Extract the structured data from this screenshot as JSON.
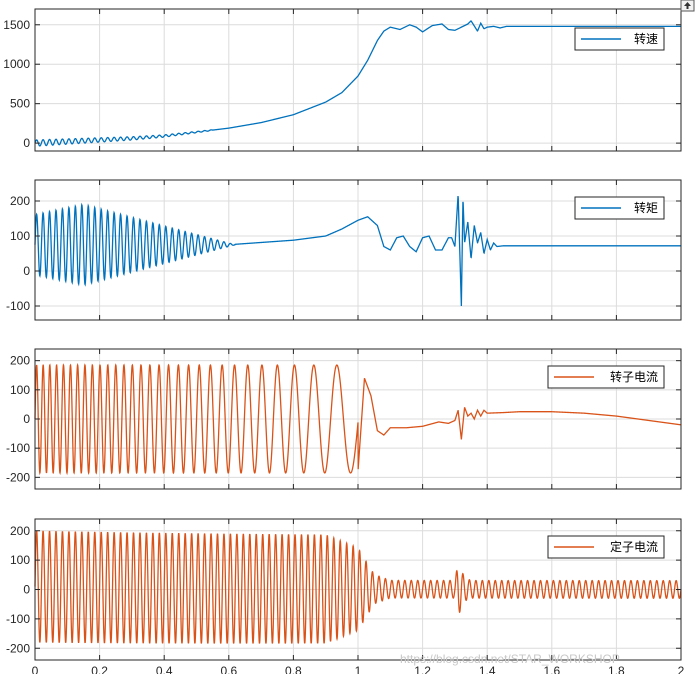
{
  "figure": {
    "watermark": "https://blog.csdn.net/STAR_WORKSHOP",
    "toolbar_icon": "export-arrow-icon",
    "colors": {
      "blue": "#0072BD",
      "orange": "#D95319",
      "grid": "#dcdcdc",
      "axis": "#262626"
    }
  },
  "chart_data": [
    {
      "type": "line",
      "title": "",
      "xlabel": "",
      "ylabel": "",
      "xlim": [
        0,
        2
      ],
      "ylim": [
        -100,
        1700
      ],
      "xticks": [
        0,
        0.2,
        0.4,
        0.6,
        0.8,
        1,
        1.2,
        1.4,
        1.6,
        1.8,
        2
      ],
      "yticks": [
        0,
        500,
        1000,
        1500
      ],
      "ytick_labels": [
        "0",
        "500",
        "1000",
        "1500"
      ],
      "show_xtick_labels": false,
      "grid": true,
      "legend_position": "top-right",
      "series": [
        {
          "name": "转速",
          "color": "#0072BD",
          "x": [
            0,
            0.1,
            0.2,
            0.3,
            0.4,
            0.5,
            0.6,
            0.7,
            0.8,
            0.9,
            0.95,
            1.0,
            1.03,
            1.06,
            1.08,
            1.1,
            1.13,
            1.16,
            1.18,
            1.2,
            1.23,
            1.26,
            1.28,
            1.3,
            1.32,
            1.34,
            1.35,
            1.37,
            1.38,
            1.39,
            1.4,
            1.42,
            1.44,
            1.46,
            1.5,
            2.0
          ],
          "y": [
            0,
            20,
            40,
            60,
            90,
            140,
            190,
            260,
            360,
            520,
            640,
            850,
            1050,
            1300,
            1420,
            1470,
            1440,
            1500,
            1470,
            1410,
            1490,
            1510,
            1440,
            1430,
            1470,
            1510,
            1550,
            1420,
            1520,
            1450,
            1470,
            1480,
            1460,
            1480,
            1480,
            1480
          ],
          "oscillation": {
            "until_x": 0.55,
            "amplitude_start": 40,
            "amplitude_end": 5,
            "frequency_hz": 50
          }
        }
      ]
    },
    {
      "type": "line",
      "title": "",
      "xlabel": "",
      "ylabel": "",
      "xlim": [
        0,
        2
      ],
      "ylim": [
        -140,
        260
      ],
      "xticks": [
        0,
        0.2,
        0.4,
        0.6,
        0.8,
        1,
        1.2,
        1.4,
        1.6,
        1.8,
        2
      ],
      "yticks": [
        -100,
        0,
        100,
        200
      ],
      "ytick_labels": [
        "-100",
        "0",
        "100",
        "200"
      ],
      "show_xtick_labels": false,
      "grid": true,
      "legend_position": "top-right",
      "series": [
        {
          "name": "转矩",
          "color": "#0072BD",
          "x": [
            0,
            0.6,
            0.8,
            0.9,
            0.95,
            1.0,
            1.03,
            1.06,
            1.08,
            1.1,
            1.12,
            1.14,
            1.16,
            1.18,
            1.2,
            1.22,
            1.24,
            1.26,
            1.28,
            1.29,
            1.3,
            1.31,
            1.315,
            1.32,
            1.325,
            1.33,
            1.34,
            1.35,
            1.36,
            1.37,
            1.38,
            1.39,
            1.4,
            1.41,
            1.42,
            1.43,
            1.45,
            1.5,
            2.0
          ],
          "y": [
            75,
            75,
            88,
            100,
            120,
            145,
            155,
            130,
            70,
            60,
            95,
            100,
            70,
            55,
            95,
            100,
            60,
            60,
            95,
            95,
            70,
            220,
            60,
            -100,
            210,
            80,
            140,
            35,
            130,
            80,
            110,
            50,
            90,
            60,
            80,
            70,
            72,
            72,
            72
          ],
          "oscillation": {
            "until_x": 0.62,
            "amplitude_peak": 115,
            "peak_x": 0.15,
            "frequency_hz": 50
          }
        }
      ]
    },
    {
      "type": "line",
      "title": "",
      "xlabel": "",
      "ylabel": "",
      "xlim": [
        0,
        2
      ],
      "ylim": [
        -240,
        240
      ],
      "xticks": [
        0,
        0.2,
        0.4,
        0.6,
        0.8,
        1,
        1.2,
        1.4,
        1.6,
        1.8,
        2
      ],
      "yticks": [
        -200,
        -100,
        0,
        100,
        200
      ],
      "ytick_labels": [
        "-200",
        "-100",
        "0",
        "100",
        "200"
      ],
      "show_xtick_labels": false,
      "grid": true,
      "legend_position": "top-right",
      "series": [
        {
          "name": "转子电流",
          "color": "#D95319",
          "x": [
            1.0,
            1.02,
            1.04,
            1.06,
            1.08,
            1.1,
            1.15,
            1.2,
            1.25,
            1.28,
            1.3,
            1.31,
            1.32,
            1.33,
            1.34,
            1.35,
            1.36,
            1.37,
            1.38,
            1.39,
            1.4,
            1.45,
            1.5,
            1.6,
            1.7,
            1.8,
            1.9,
            2.0
          ],
          "y": [
            -180,
            140,
            80,
            -40,
            -55,
            -30,
            -30,
            -25,
            -10,
            -15,
            -5,
            30,
            -70,
            40,
            10,
            20,
            0,
            30,
            10,
            30,
            20,
            22,
            25,
            25,
            20,
            10,
            -5,
            -20
          ],
          "oscillation": {
            "until_x": 1.0,
            "amplitude": 185,
            "frequency_start_hz": 50,
            "frequency_end_hz": 10
          }
        }
      ]
    },
    {
      "type": "line",
      "title": "",
      "xlabel": "",
      "ylabel": "",
      "xlim": [
        0,
        2
      ],
      "ylim": [
        -240,
        240
      ],
      "xticks": [
        0,
        0.2,
        0.4,
        0.6,
        0.8,
        1,
        1.2,
        1.4,
        1.6,
        1.8,
        2
      ],
      "xtick_labels": [
        "0",
        "0.2",
        "0.4",
        "0.6",
        "0.8",
        "1",
        "1.2",
        "1.4",
        "1.6",
        "1.8",
        "2"
      ],
      "yticks": [
        -200,
        -100,
        0,
        100,
        200
      ],
      "ytick_labels": [
        "-200",
        "-100",
        "0",
        "100",
        "200"
      ],
      "show_xtick_labels": true,
      "grid": true,
      "legend_position": "top-right",
      "series": [
        {
          "name": "定子电流",
          "color": "#D95319",
          "frequency_hz": 50,
          "amplitude_envelope": {
            "x": [
              0,
              0.9,
              1.0,
              1.05,
              1.1,
              1.3,
              1.31,
              1.33,
              1.35,
              2.0
            ],
            "y": [
              190,
              185,
              140,
              50,
              30,
              30,
              90,
              40,
              30,
              30
            ]
          }
        }
      ]
    }
  ]
}
